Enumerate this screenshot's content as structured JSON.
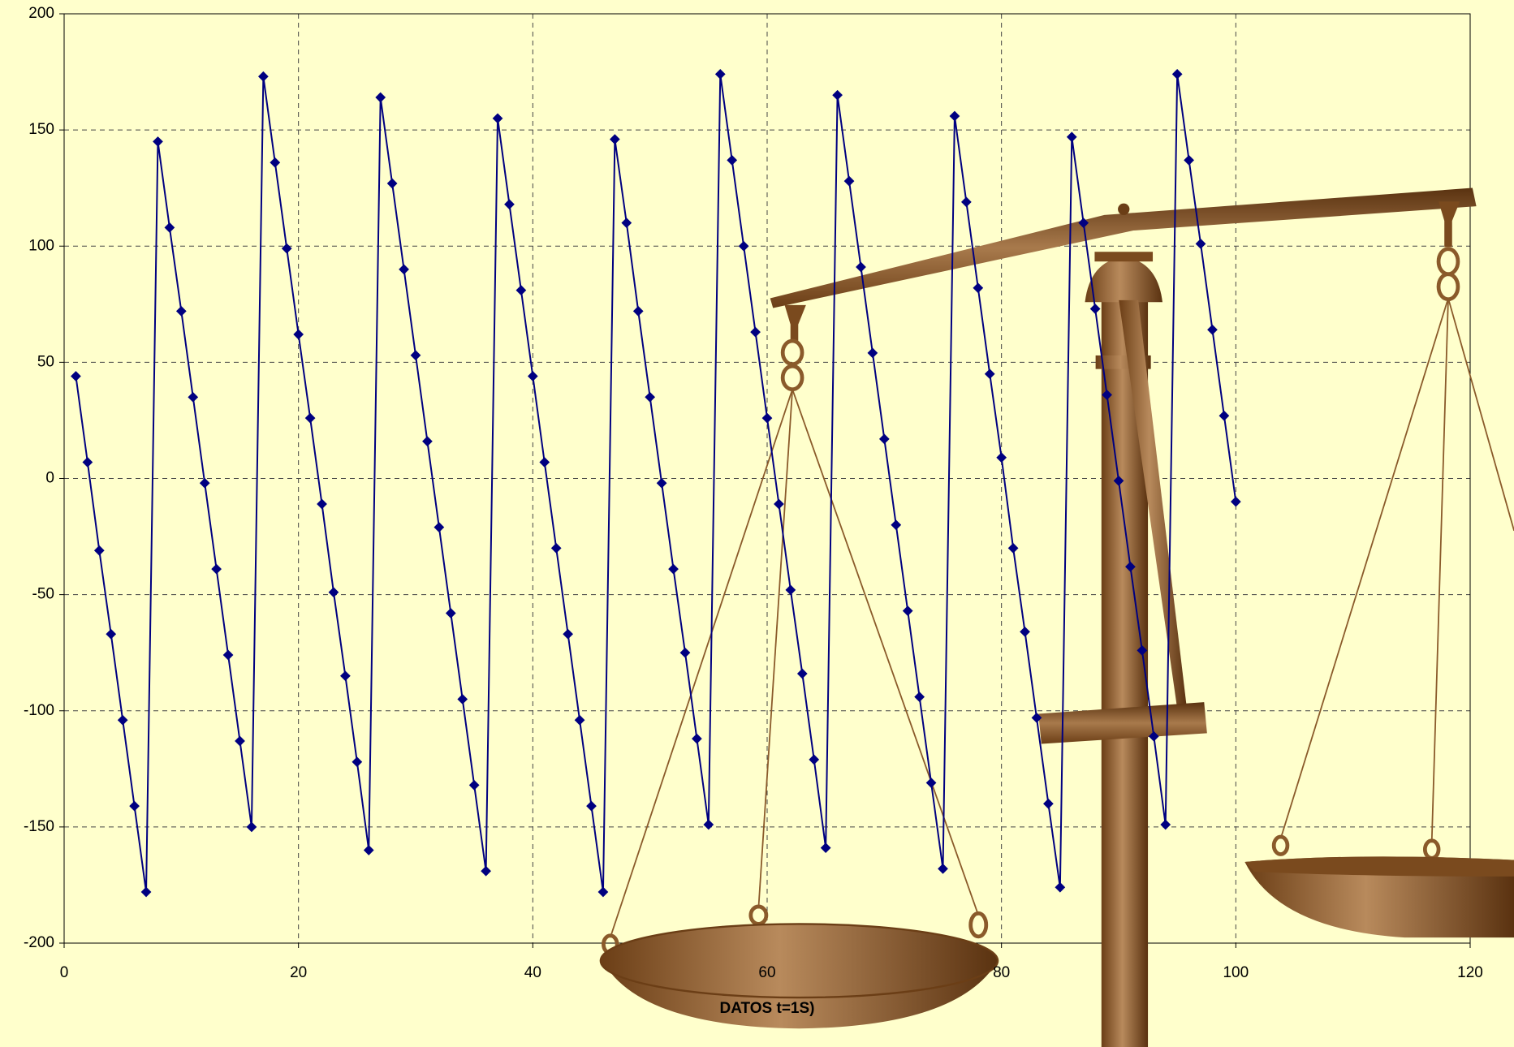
{
  "chart_data": {
    "type": "line",
    "x_label": "DATOS t=1S)",
    "x": [
      1,
      2,
      3,
      4,
      5,
      6,
      7,
      8,
      9,
      10,
      11,
      12,
      13,
      14,
      15,
      16,
      17,
      18,
      19,
      20,
      21,
      22,
      23,
      24,
      25,
      26,
      27,
      28,
      29,
      30,
      31,
      32,
      33,
      34,
      35,
      36,
      37,
      38,
      39,
      40,
      41,
      42,
      43,
      44,
      45,
      46,
      47,
      48,
      49,
      50,
      51,
      52,
      53,
      54,
      55,
      56,
      57,
      58,
      59,
      60,
      61,
      62,
      63,
      64,
      65,
      66,
      67,
      68,
      69,
      70,
      71,
      72,
      73,
      74,
      75,
      76,
      77,
      78,
      79,
      80,
      81,
      82,
      83,
      84,
      85,
      86,
      87,
      88,
      89,
      90,
      91,
      92,
      93,
      94,
      95,
      96,
      97,
      98,
      99,
      100
    ],
    "series": [
      {
        "color": "#000080",
        "values": [
          44,
          7,
          -31,
          -67,
          -104,
          -141,
          -178,
          145,
          108,
          72,
          35,
          -2,
          -39,
          -76,
          -113,
          -150,
          173,
          136,
          99,
          62,
          26,
          -11,
          -49,
          -85,
          -122,
          -160,
          164,
          127,
          90,
          53,
          16,
          -21,
          -58,
          -95,
          -132,
          -169,
          155,
          118,
          81,
          44,
          7,
          -30,
          -67,
          -104,
          -141,
          -178,
          146,
          110,
          72,
          35,
          -2,
          -39,
          -75,
          -112,
          -149,
          174,
          137,
          100,
          63,
          26,
          -11,
          -48,
          -84,
          -121,
          -159,
          165,
          128,
          91,
          54,
          17,
          -20,
          -57,
          -94,
          -131,
          -168,
          156,
          119,
          82,
          45,
          9,
          -30,
          -66,
          -103,
          -140,
          -176,
          147,
          110,
          73,
          36,
          -1,
          -38,
          -74,
          -111,
          -149,
          174,
          137,
          101,
          64,
          27,
          -10
        ]
      }
    ],
    "xlim": [
      0,
      120
    ],
    "xticks": [
      0,
      20,
      40,
      60,
      80,
      100,
      120
    ],
    "ylim": [
      -200,
      200
    ],
    "yticks": [
      -200,
      -150,
      -100,
      -50,
      0,
      50,
      100,
      150,
      200
    ],
    "grid": true
  }
}
